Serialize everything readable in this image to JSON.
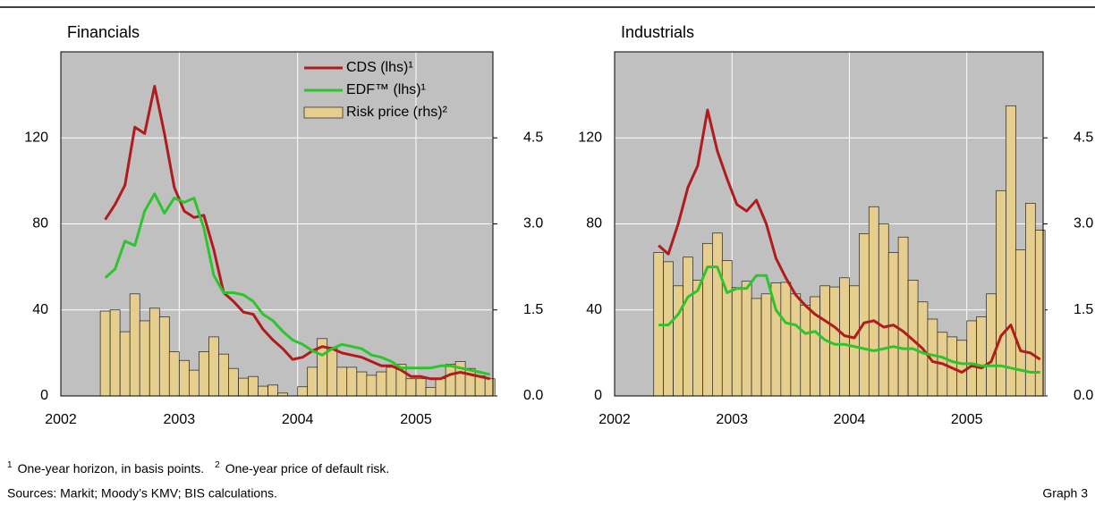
{
  "chart_data": [
    {
      "type": "combo",
      "title": "Financials",
      "legend": "upper right",
      "grid": true,
      "x": [
        2002.375,
        2002.458,
        2002.542,
        2002.625,
        2002.708,
        2002.792,
        2002.875,
        2002.958,
        2003.042,
        2003.125,
        2003.208,
        2003.292,
        2003.375,
        2003.458,
        2003.542,
        2003.625,
        2003.708,
        2003.792,
        2003.875,
        2003.958,
        2004.042,
        2004.125,
        2004.208,
        2004.292,
        2004.375,
        2004.458,
        2004.542,
        2004.625,
        2004.708,
        2004.792,
        2004.875,
        2004.958,
        2005.042,
        2005.125,
        2005.208,
        2005.292,
        2005.375,
        2005.458,
        2005.542,
        2005.625
      ],
      "xlim": [
        2002,
        2005.65
      ],
      "xticks": [
        2002,
        2003,
        2004,
        2005
      ],
      "ylim": [
        0,
        160
      ],
      "yticks": [
        0,
        40,
        80,
        120
      ],
      "y2lim": [
        0,
        6
      ],
      "y2ticks": [
        {
          "value": 0,
          "label": "0.0"
        },
        1.5,
        {
          "value": 3,
          "label": "3.0"
        },
        4.5
      ],
      "series": [
        {
          "name": "Risk price (rhs)²",
          "type": "bar",
          "axis": "y2",
          "color": "#e6cf8e",
          "values": [
            1.48,
            1.5,
            1.12,
            1.78,
            1.31,
            1.53,
            1.38,
            0.77,
            0.62,
            0.45,
            0.77,
            1.03,
            0.73,
            0.48,
            0.31,
            0.34,
            0.17,
            0.19,
            0.05,
            0,
            0.16,
            0.5,
            1.0,
            0.85,
            0.5,
            0.5,
            0.42,
            0.36,
            0.42,
            0.5,
            0.55,
            0.3,
            0.3,
            0.15,
            0.3,
            0.55,
            0.6,
            0.48,
            0.35,
            0.3
          ]
        },
        {
          "name": "CDS (lhs)¹",
          "type": "line",
          "color": "#b01c1c",
          "values": [
            82,
            89,
            98,
            125,
            122,
            144,
            122,
            97,
            86,
            83,
            84,
            68,
            48,
            44,
            39,
            38,
            31,
            26,
            22,
            17,
            18,
            21,
            23,
            22,
            20,
            19,
            18,
            16,
            14,
            14,
            12,
            9,
            9,
            8,
            8,
            10,
            11,
            10,
            9,
            8
          ]
        },
        {
          "name": "EDF™ (lhs)¹",
          "type": "line",
          "color": "#2ec42e",
          "values": [
            55,
            59,
            72,
            70,
            86,
            94,
            85,
            92,
            90,
            92,
            78,
            56,
            48,
            48,
            47,
            44,
            38,
            35,
            30,
            26,
            24,
            21,
            19,
            22,
            24,
            23,
            22,
            19,
            18,
            16,
            13,
            13,
            13,
            13,
            14,
            14,
            13,
            12,
            11,
            10
          ]
        }
      ]
    },
    {
      "type": "combo",
      "title": "Industrials",
      "grid": true,
      "x": [
        2002.375,
        2002.458,
        2002.542,
        2002.625,
        2002.708,
        2002.792,
        2002.875,
        2002.958,
        2003.042,
        2003.125,
        2003.208,
        2003.292,
        2003.375,
        2003.458,
        2003.542,
        2003.625,
        2003.708,
        2003.792,
        2003.875,
        2003.958,
        2004.042,
        2004.125,
        2004.208,
        2004.292,
        2004.375,
        2004.458,
        2004.542,
        2004.625,
        2004.708,
        2004.792,
        2004.875,
        2004.958,
        2005.042,
        2005.125,
        2005.208,
        2005.292,
        2005.375,
        2005.458,
        2005.542,
        2005.625
      ],
      "xlim": [
        2002,
        2005.65
      ],
      "xticks": [
        2002,
        2003,
        2004,
        2005
      ],
      "ylim": [
        0,
        160
      ],
      "yticks": [
        0,
        40,
        80,
        120
      ],
      "y2lim": [
        0,
        6
      ],
      "y2ticks": [
        {
          "value": 0,
          "label": "0.0"
        },
        1.5,
        {
          "value": 3,
          "label": "3.0"
        },
        4.5
      ],
      "series": [
        {
          "type": "bar",
          "axis": "y2",
          "color": "#e6cf8e",
          "values": [
            2.5,
            2.34,
            1.92,
            2.42,
            2.02,
            2.66,
            2.84,
            2.36,
            1.89,
            2.0,
            1.7,
            1.78,
            1.97,
            1.98,
            1.78,
            1.58,
            1.73,
            1.92,
            1.9,
            2.06,
            1.92,
            2.83,
            3.3,
            3.0,
            2.5,
            2.77,
            2.02,
            1.64,
            1.34,
            1.11,
            1.03,
            0.97,
            1.31,
            1.38,
            1.78,
            3.58,
            5.06,
            2.55,
            3.36,
            2.89
          ]
        },
        {
          "type": "line",
          "color": "#b01c1c",
          "values": [
            70,
            66,
            80,
            97,
            107,
            133,
            114,
            101,
            89,
            86,
            91,
            80,
            64,
            55,
            47,
            42,
            38,
            35,
            32,
            28,
            27,
            34,
            35,
            32,
            33,
            30,
            26,
            22,
            16,
            15,
            13,
            11,
            14,
            13,
            16,
            28,
            33,
            21,
            20,
            17
          ]
        },
        {
          "type": "line",
          "color": "#2ec42e",
          "values": [
            33,
            33,
            38,
            46,
            49,
            60,
            60,
            48,
            50,
            50,
            56,
            56,
            40,
            34,
            33,
            29,
            30,
            26,
            24,
            24,
            23,
            22,
            21,
            22,
            23,
            22,
            22,
            20,
            19,
            18,
            16,
            15,
            15,
            14,
            14,
            14,
            13,
            12,
            11,
            11
          ]
        }
      ]
    }
  ],
  "footnotes": [
    {
      "mark": "1",
      "text": "One-year horizon, in basis points."
    },
    {
      "mark": "2",
      "text": "One-year price of default risk."
    }
  ],
  "sources": "Sources: Markit; Moody’s KMV; BIS calculations.",
  "graph_label": "Graph 3"
}
